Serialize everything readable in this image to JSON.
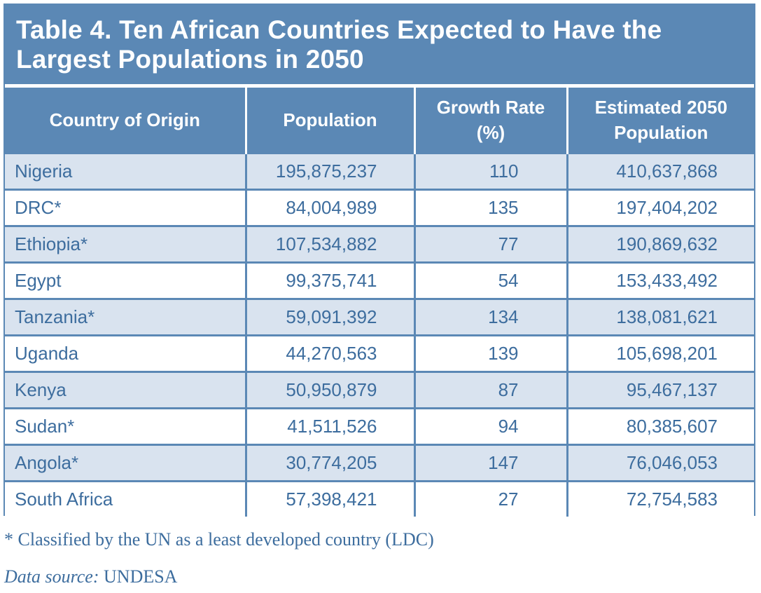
{
  "title_line1": "Table 4. Ten African Countries Expected to Have the",
  "title_line2": "Largest Populations in 2050",
  "headers": {
    "country": "Country of Origin",
    "population": "Population",
    "growth_line1": "Growth Rate",
    "growth_line2": "(%)",
    "estimate_line1": "Estimated 2050",
    "estimate_line2": "Population"
  },
  "rows": [
    {
      "country": "Nigeria",
      "population": "195,875,237",
      "growth": "110",
      "estimate": "410,637,868"
    },
    {
      "country": "DRC*",
      "population": "84,004,989",
      "growth": "135",
      "estimate": "197,404,202"
    },
    {
      "country": "Ethiopia*",
      "population": "107,534,882",
      "growth": "77",
      "estimate": "190,869,632"
    },
    {
      "country": "Egypt",
      "population": "99,375,741",
      "growth": "54",
      "estimate": "153,433,492"
    },
    {
      "country": "Tanzania*",
      "population": "59,091,392",
      "growth": "134",
      "estimate": "138,081,621"
    },
    {
      "country": "Uganda",
      "population": "44,270,563",
      "growth": "139",
      "estimate": "105,698,201"
    },
    {
      "country": "Kenya",
      "population": "50,950,879",
      "growth": "87",
      "estimate": "95,467,137"
    },
    {
      "country": "Sudan*",
      "population": "41,511,526",
      "growth": "94",
      "estimate": "80,385,607"
    },
    {
      "country": "Angola*",
      "population": "30,774,205",
      "growth": "147",
      "estimate": "76,046,053"
    },
    {
      "country": "South Africa",
      "population": "57,398,421",
      "growth": "27",
      "estimate": "72,754,583"
    }
  ],
  "footnote": "* Classified by the UN as a least developed country (LDC)",
  "source_label": "Data source:",
  "source_value": " UNDESA",
  "colors": {
    "header_blue": "#5b88b5",
    "stripe": "#d9e3ef",
    "text_blue": "#3d6d9e"
  }
}
